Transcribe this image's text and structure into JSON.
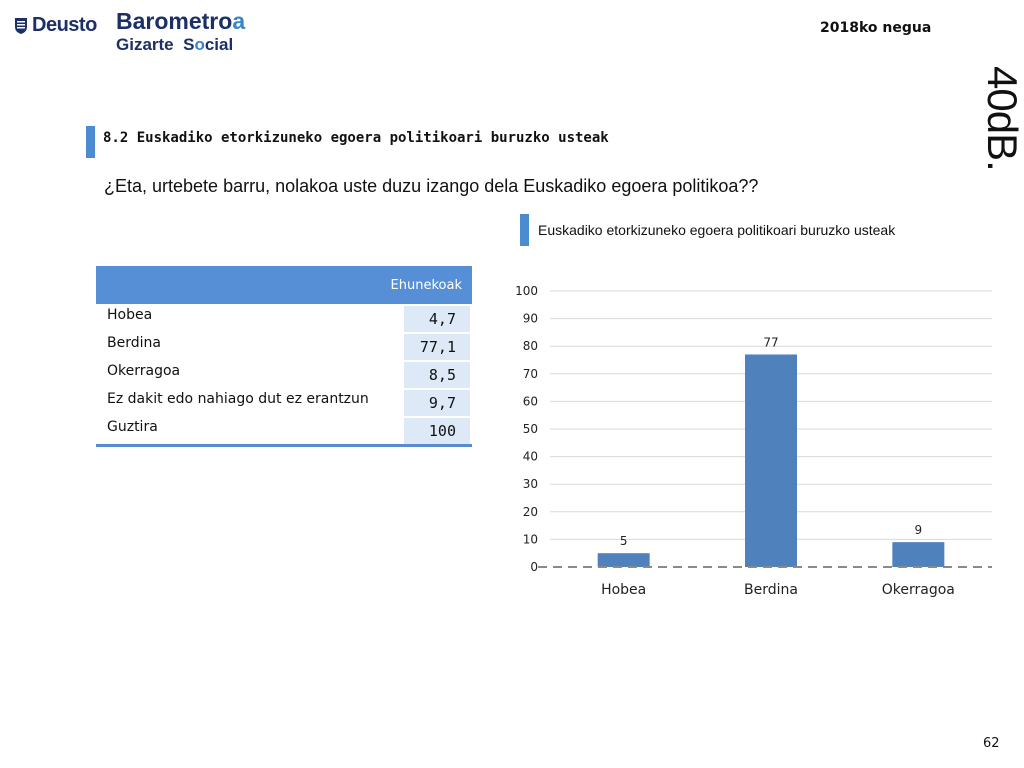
{
  "header": {
    "deusto": "Deusto",
    "barometro_main": "Barometro",
    "barometro_accent": "a",
    "gizarte_1": "Gizarte",
    "gizarte_2a": "S",
    "gizarte_2b": "cial",
    "season": "2018ko negua",
    "brand": "40dB."
  },
  "section": {
    "title": "8.2 Euskadiko etorkizuneko egoera politikoari buruzko usteak",
    "question": "¿Eta, urtebete barru, nolakoa uste duzu izango dela Euskadiko egoera politikoa??"
  },
  "table": {
    "header": "Ehunekoak",
    "rows": [
      {
        "label": "Hobea",
        "value": "4,7"
      },
      {
        "label": "Berdina",
        "value": "77,1"
      },
      {
        "label": "Okerragoa",
        "value": "8,5"
      },
      {
        "label": "Ez dakit edo nahiago dut ez erantzun",
        "value": "9,7"
      },
      {
        "label": "Guztira",
        "value": "100"
      }
    ]
  },
  "chart_data": {
    "type": "bar",
    "title": "Euskadiko etorkizuneko egoera politikoari buruzko usteak",
    "categories": [
      "Hobea",
      "Berdina",
      "Okerragoa"
    ],
    "values": [
      5,
      77,
      9
    ],
    "data_labels": [
      "5",
      "77",
      "9"
    ],
    "ylim": [
      0,
      100
    ],
    "yticks": [
      0,
      10,
      20,
      30,
      40,
      50,
      60,
      70,
      80,
      90,
      100
    ],
    "grid": true,
    "bar_color": "#4f81bd"
  },
  "colors": {
    "accent": "#4c8bd0",
    "table_header": "#568fd6",
    "table_cell": "#dde9f7"
  },
  "footer": {
    "page_number": "62"
  }
}
